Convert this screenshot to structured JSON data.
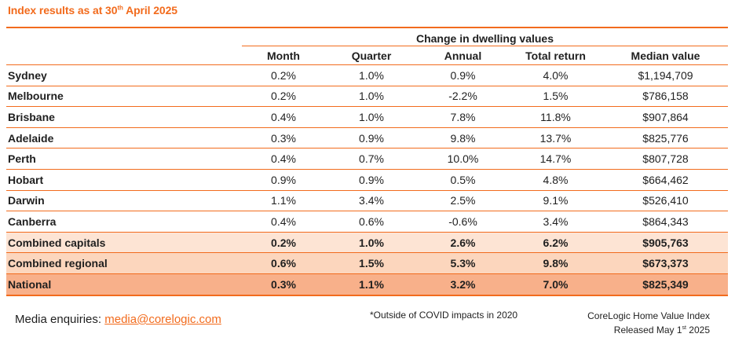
{
  "header": {
    "title_prefix": "Index results as at 30",
    "title_sup": "th",
    "title_suffix": " April 2025"
  },
  "accent_color": "#f26b1d",
  "chart_data": {
    "type": "table",
    "group_header": "Change in dwelling values",
    "columns": [
      "Month",
      "Quarter",
      "Annual",
      "Total return",
      "Median value"
    ],
    "rows": [
      {
        "name": "Sydney",
        "values": [
          "0.2%",
          "1.0%",
          "0.9%",
          "4.0%",
          "$1,194,709"
        ],
        "highlight": "none"
      },
      {
        "name": "Melbourne",
        "values": [
          "0.2%",
          "1.0%",
          "-2.2%",
          "1.5%",
          "$786,158"
        ],
        "highlight": "none"
      },
      {
        "name": "Brisbane",
        "values": [
          "0.4%",
          "1.0%",
          "7.8%",
          "11.8%",
          "$907,864"
        ],
        "highlight": "none"
      },
      {
        "name": "Adelaide",
        "values": [
          "0.3%",
          "0.9%",
          "9.8%",
          "13.7%",
          "$825,776"
        ],
        "highlight": "none"
      },
      {
        "name": "Perth",
        "values": [
          "0.4%",
          "0.7%",
          "10.0%",
          "14.7%",
          "$807,728"
        ],
        "highlight": "none"
      },
      {
        "name": "Hobart",
        "values": [
          "0.9%",
          "0.9%",
          "0.5%",
          "4.8%",
          "$664,462"
        ],
        "highlight": "none"
      },
      {
        "name": "Darwin",
        "values": [
          "1.1%",
          "3.4%",
          "2.5%",
          "9.1%",
          "$526,410"
        ],
        "highlight": "none"
      },
      {
        "name": "Canberra",
        "values": [
          "0.4%",
          "0.6%",
          "-0.6%",
          "3.4%",
          "$864,343"
        ],
        "highlight": "none"
      },
      {
        "name": "Combined capitals",
        "values": [
          "0.2%",
          "1.0%",
          "2.6%",
          "6.2%",
          "$905,763"
        ],
        "highlight": "cap"
      },
      {
        "name": "Combined regional",
        "values": [
          "0.6%",
          "1.5%",
          "5.3%",
          "9.8%",
          "$673,373"
        ],
        "highlight": "reg"
      },
      {
        "name": "National",
        "values": [
          "0.3%",
          "1.1%",
          "3.2%",
          "7.0%",
          "$825,349"
        ],
        "highlight": "nat"
      }
    ]
  },
  "footer": {
    "media_label": "Media enquiries: ",
    "media_email": "media@corelogic.com",
    "note": "*Outside of COVID impacts in 2020",
    "source_line1": "CoreLogic Home Value Index",
    "source_line2_prefix": "Released May 1",
    "source_line2_sup": "st",
    "source_line2_suffix": " 2025"
  }
}
